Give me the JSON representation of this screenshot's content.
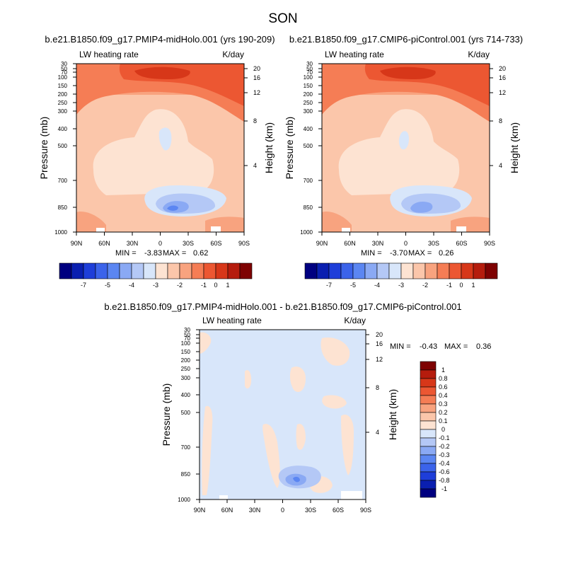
{
  "figure": {
    "title": "SON"
  },
  "colors": {
    "panel_scale": [
      "#000080",
      "#0a1fb0",
      "#1e3ed9",
      "#3b63ea",
      "#5b86f2",
      "#8aa9f4",
      "#b4c8f6",
      "#d8e6fa",
      "#fde3d2",
      "#fbc6aa",
      "#f8a37f",
      "#f57d55",
      "#ec5732",
      "#d73719",
      "#b51c0d",
      "#7e0202"
    ],
    "diff_scale": [
      "#000080",
      "#0a1fb0",
      "#1e3ed9",
      "#3b63ea",
      "#5b86f2",
      "#8aa9f4",
      "#b4c8f6",
      "#d8e6fa",
      "#fde3d2",
      "#fbc6aa",
      "#f8a37f",
      "#f57d55",
      "#ec5732",
      "#d73719",
      "#b51c0d",
      "#7e0202"
    ]
  },
  "chart_data": [
    {
      "type": "heatmap",
      "title": "b.e21.B1850.f09_g17.PMIP4-midHolo.001 (yrs 190-209)",
      "left_string": "LW heating rate",
      "right_string": "K/day",
      "xlabel": "",
      "ylabel": "Pressure (mb)",
      "ylabel_right": "Height (km)",
      "x_ticks": [
        "90N",
        "60N",
        "30N",
        "0",
        "30S",
        "60S",
        "90S"
      ],
      "y_ticks": [
        "30",
        "50",
        "70",
        "100",
        "150",
        "200",
        "250",
        "300",
        "400",
        "500",
        "700",
        "850",
        "1000"
      ],
      "y_ticks_right": [
        "20",
        "16",
        "12",
        "8",
        "4"
      ],
      "min_label": "MIN =",
      "min": "-3.83",
      "max_label": "MAX =",
      "max": "0.62",
      "legend_labels": [
        "-7",
        "-5",
        "-4",
        "-3",
        "-2",
        "-1",
        "0",
        "1"
      ],
      "ylim": [
        1000,
        30
      ],
      "xlim": [
        "90N",
        "90S"
      ]
    },
    {
      "type": "heatmap",
      "title": "b.e21.B1850.f09_g17.CMIP6-piControl.001 (yrs 714-733)",
      "left_string": "LW heating rate",
      "right_string": "K/day",
      "xlabel": "",
      "ylabel": "Pressure (mb)",
      "ylabel_right": "Height (km)",
      "x_ticks": [
        "90N",
        "60N",
        "30N",
        "0",
        "30S",
        "60S",
        "90S"
      ],
      "y_ticks": [
        "30",
        "50",
        "70",
        "100",
        "150",
        "200",
        "250",
        "300",
        "400",
        "500",
        "700",
        "850",
        "1000"
      ],
      "y_ticks_right": [
        "20",
        "16",
        "12",
        "8",
        "4"
      ],
      "min_label": "MIN =",
      "min": "-3.70",
      "max_label": "MAX =",
      "max": "0.26",
      "legend_labels": [
        "-7",
        "-5",
        "-4",
        "-3",
        "-2",
        "-1",
        "0",
        "1"
      ],
      "ylim": [
        1000,
        30
      ],
      "xlim": [
        "90N",
        "90S"
      ]
    },
    {
      "type": "heatmap",
      "title": "b.e21.B1850.f09_g17.PMIP4-midHolo.001 - b.e21.B1850.f09_g17.CMIP6-piControl.001",
      "left_string": "LW heating rate",
      "right_string": "K/day",
      "xlabel": "",
      "ylabel": "Pressure (mb)",
      "ylabel_right": "Height (km)",
      "x_ticks": [
        "90N",
        "60N",
        "30N",
        "0",
        "30S",
        "60S",
        "90S"
      ],
      "y_ticks": [
        "30",
        "50",
        "70",
        "100",
        "150",
        "200",
        "250",
        "300",
        "400",
        "500",
        "700",
        "850",
        "1000"
      ],
      "y_ticks_right": [
        "20",
        "16",
        "12",
        "8",
        "4"
      ],
      "min_label": "MIN =",
      "min": "-0.43",
      "max_label": "MAX =",
      "max": "0.36",
      "legend_labels": [
        "1",
        "0.8",
        "0.6",
        "0.4",
        "0.3",
        "0.2",
        "0.1",
        "0",
        "-0.1",
        "-0.2",
        "-0.3",
        "-0.4",
        "-0.6",
        "-0.8",
        "-1"
      ],
      "ylim": [
        1000,
        30
      ],
      "xlim": [
        "90N",
        "90S"
      ]
    }
  ]
}
